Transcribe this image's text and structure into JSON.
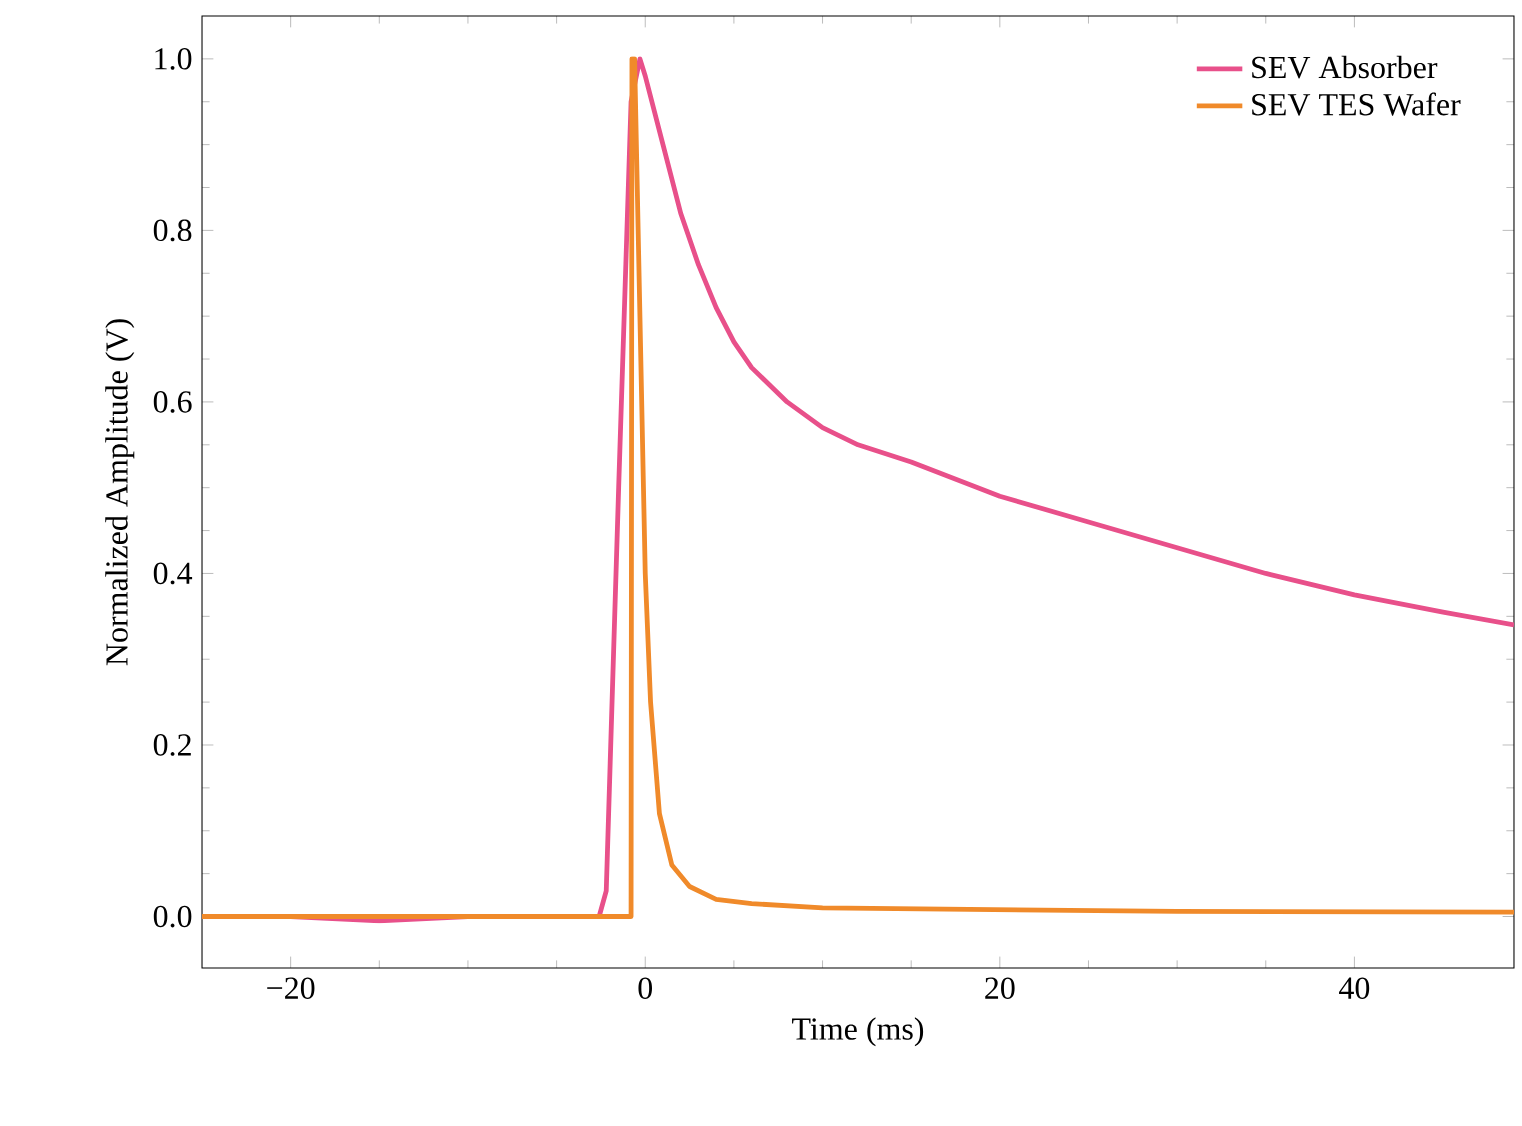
{
  "chart_data": {
    "type": "line",
    "xlabel": "Time (ms)",
    "ylabel": "Normalized Amplitude (V)",
    "xlim": [
      -25,
      49
    ],
    "ylim": [
      -0.06,
      1.05
    ],
    "xticks": [
      {
        "value": -20,
        "label": "−20"
      },
      0,
      20,
      40
    ],
    "yticks": [
      {
        "value": 0,
        "label": "0.0"
      },
      {
        "value": 0.2,
        "label": "0.2"
      },
      {
        "value": 0.4,
        "label": "0.4"
      },
      {
        "value": 0.6,
        "label": "0.6"
      },
      {
        "value": 0.8,
        "label": "0.8"
      },
      {
        "value": 1,
        "label": "1.0"
      }
    ],
    "grid": false,
    "legend": "top right",
    "marker": "none",
    "line_style": "solid",
    "series": [
      {
        "name": "SEV Absorber",
        "color": "#e8508a",
        "x": [
          -25,
          -20,
          -15,
          -10,
          -5,
          -2.6,
          -2.2,
          -1.5,
          -0.8,
          -0.3,
          0,
          1,
          2,
          3,
          4,
          5,
          6,
          8,
          10,
          12,
          15,
          20,
          25,
          30,
          35,
          40,
          45,
          49
        ],
        "values": [
          0,
          0,
          -0.005,
          0,
          0,
          0,
          0.03,
          0.5,
          0.95,
          1.0,
          0.98,
          0.9,
          0.82,
          0.76,
          0.71,
          0.67,
          0.64,
          0.6,
          0.57,
          0.55,
          0.53,
          0.49,
          0.46,
          0.43,
          0.4,
          0.375,
          0.355,
          0.34
        ]
      },
      {
        "name": "SEV TES Wafer",
        "color": "#f08a2a",
        "x": [
          -25,
          -10,
          -0.8,
          -0.75,
          -0.6,
          -0.3,
          0,
          0.3,
          0.8,
          1.5,
          2.5,
          4,
          6,
          10,
          20,
          30,
          49
        ],
        "values": [
          0,
          0,
          0,
          1.0,
          1.0,
          0.7,
          0.4,
          0.25,
          0.12,
          0.06,
          0.035,
          0.02,
          0.015,
          0.01,
          0.008,
          0.006,
          0.005
        ]
      }
    ]
  }
}
